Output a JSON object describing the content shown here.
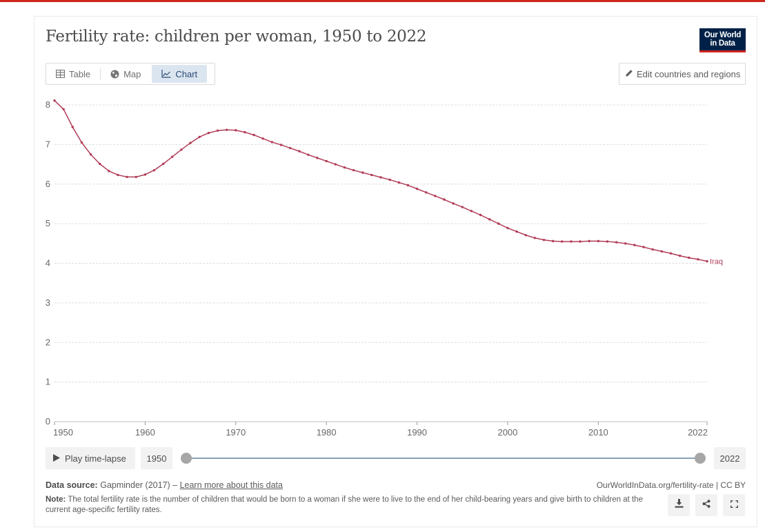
{
  "header": {
    "title": "Fertility rate: children per woman, 1950 to 2022",
    "logo_line1": "Our World",
    "logo_line2": "in Data"
  },
  "tabs": [
    {
      "label": "Table",
      "icon": "table-icon",
      "active": false
    },
    {
      "label": "Map",
      "icon": "globe-icon",
      "active": false
    },
    {
      "label": "Chart",
      "icon": "line-chart-icon",
      "active": true
    }
  ],
  "edit_button": {
    "label": "Edit countries and regions",
    "icon": "pencil-icon"
  },
  "controls": {
    "play_label": "Play time-lapse",
    "start_year": "1950",
    "end_year": "2022",
    "range_start_fraction": 0,
    "range_end_fraction": 1
  },
  "footer": {
    "source_label": "Data source:",
    "source_text": "Gapminder (2017) –",
    "source_link": "Learn more about this data",
    "url_text": "OurWorldInData.org/fertility-rate | CC BY",
    "note_label": "Note:",
    "note_text": "The total fertility rate is the number of children that would be born to a woman if she were to live to the end of her child-bearing years and give birth to children at the current age-specific fertility rates."
  },
  "colors": {
    "accent": "#ce261e",
    "series": "#b13c56",
    "brand": "#002147"
  },
  "chart_data": {
    "type": "line",
    "title": "Fertility rate: children per woman, 1950 to 2022",
    "xlabel": "",
    "ylabel": "",
    "xlim": [
      1950,
      2022
    ],
    "ylim": [
      0,
      8
    ],
    "x_ticks": [
      1950,
      1960,
      1970,
      1980,
      1990,
      2000,
      2010,
      2022
    ],
    "y_ticks": [
      0,
      1,
      2,
      3,
      4,
      5,
      6,
      7,
      8
    ],
    "grid": "horizontal dashed",
    "legend": "inline label at line end",
    "series": [
      {
        "name": "Iraq",
        "color": "#b13c56",
        "x": [
          1950,
          1951,
          1952,
          1953,
          1954,
          1955,
          1956,
          1957,
          1958,
          1959,
          1960,
          1961,
          1962,
          1963,
          1964,
          1965,
          1966,
          1967,
          1968,
          1969,
          1970,
          1971,
          1972,
          1973,
          1974,
          1975,
          1976,
          1977,
          1978,
          1979,
          1980,
          1981,
          1982,
          1983,
          1984,
          1985,
          1986,
          1987,
          1988,
          1989,
          1990,
          1991,
          1992,
          1993,
          1994,
          1995,
          1996,
          1997,
          1998,
          1999,
          2000,
          2001,
          2002,
          2003,
          2004,
          2005,
          2006,
          2007,
          2008,
          2009,
          2010,
          2011,
          2012,
          2013,
          2014,
          2015,
          2016,
          2017,
          2018,
          2019,
          2020,
          2021,
          2022
        ],
        "values": [
          8.11,
          7.89,
          7.44,
          7.05,
          6.75,
          6.51,
          6.33,
          6.23,
          6.18,
          6.18,
          6.24,
          6.35,
          6.51,
          6.69,
          6.87,
          7.04,
          7.19,
          7.29,
          7.35,
          7.37,
          7.36,
          7.31,
          7.24,
          7.15,
          7.06,
          6.99,
          6.91,
          6.83,
          6.74,
          6.66,
          6.58,
          6.5,
          6.42,
          6.35,
          6.29,
          6.23,
          6.17,
          6.11,
          6.04,
          5.97,
          5.88,
          5.79,
          5.7,
          5.61,
          5.51,
          5.42,
          5.32,
          5.22,
          5.11,
          5.0,
          4.89,
          4.8,
          4.71,
          4.64,
          4.59,
          4.56,
          4.55,
          4.55,
          4.55,
          4.56,
          4.56,
          4.55,
          4.53,
          4.5,
          4.46,
          4.41,
          4.35,
          4.3,
          4.25,
          4.19,
          4.14,
          4.1,
          4.05
        ]
      }
    ]
  }
}
